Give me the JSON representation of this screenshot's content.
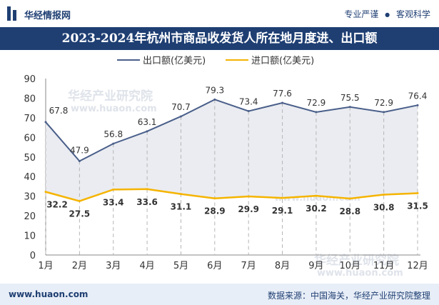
{
  "header": {
    "brand": "华经情报网",
    "slogan_left": "专业严谨",
    "slogan_sep": "●",
    "slogan_right": "客观科学"
  },
  "footer": {
    "website": "www.huaon.com",
    "source": "数据来源：中国海关，华经产业研究院整理"
  },
  "colors": {
    "header_blue": "#1f3f73",
    "export_line": "#4a5f8a",
    "import_line": "#f5b400",
    "area_fill": "#eaecf1"
  },
  "chart_data": {
    "type": "line",
    "title": "2023-2024年杭州市商品收发货人所在地月度进、出口额",
    "categories": [
      "1月",
      "2月",
      "3月",
      "4月",
      "5月",
      "6月",
      "7月",
      "8月",
      "9月",
      "10月",
      "11月",
      "12月"
    ],
    "series": [
      {
        "name": "出口额(亿美元)",
        "values": [
          67.8,
          47.9,
          56.8,
          63.1,
          70.7,
          79.3,
          73.4,
          77.6,
          72.9,
          75.5,
          72.9,
          76.4
        ]
      },
      {
        "name": "进口额(亿美元)",
        "values": [
          32.2,
          27.5,
          33.4,
          33.6,
          31.1,
          28.9,
          29.9,
          29.1,
          30.2,
          28.8,
          30.8,
          31.5
        ]
      }
    ],
    "yticks": [
      0,
      10,
      20,
      30,
      40,
      50,
      60,
      70,
      80,
      90
    ],
    "ylim": [
      0,
      90
    ],
    "legend_position": "top-left",
    "watermark": "华经产业研究院 www.huaon.com"
  }
}
